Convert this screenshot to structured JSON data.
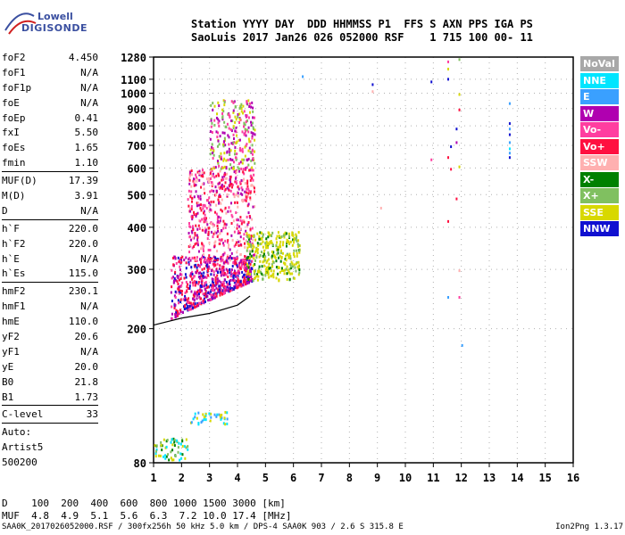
{
  "logo": {
    "line1": "Lowell",
    "line2": "DIGISONDE"
  },
  "header": {
    "line1": "Station YYYY DAY  DDD HHMMSS P1  FFS S AXN PPS IGA PS",
    "line2": "SaoLuis 2017 Jan26 026 052000 RSF    1 715 100 00- 11"
  },
  "params": [
    {
      "name": "foF2",
      "value": "4.450"
    },
    {
      "name": "foF1",
      "value": "N/A"
    },
    {
      "name": "foF1p",
      "value": "N/A"
    },
    {
      "name": "foE",
      "value": "N/A"
    },
    {
      "name": "foEp",
      "value": "0.41"
    },
    {
      "name": "fxI",
      "value": "5.50"
    },
    {
      "name": "foEs",
      "value": "1.65"
    },
    {
      "name": "fmin",
      "value": "1.10"
    },
    {
      "sep": true
    },
    {
      "name": "MUF(D)",
      "value": "17.39"
    },
    {
      "name": "M(D)",
      "value": "3.91"
    },
    {
      "name": "D",
      "value": "N/A"
    },
    {
      "sep": true
    },
    {
      "name": "h`F",
      "value": "220.0"
    },
    {
      "name": "h`F2",
      "value": "220.0"
    },
    {
      "name": "h`E",
      "value": "N/A"
    },
    {
      "name": "h`Es",
      "value": "115.0"
    },
    {
      "sep": true
    },
    {
      "name": "hmF2",
      "value": "230.1"
    },
    {
      "name": "hmF1",
      "value": "N/A"
    },
    {
      "name": "hmE",
      "value": "110.0"
    },
    {
      "name": "yF2",
      "value": "20.6"
    },
    {
      "name": "yF1",
      "value": "N/A"
    },
    {
      "name": "yE",
      "value": "20.0"
    },
    {
      "name": "B0",
      "value": "21.8"
    },
    {
      "name": "B1",
      "value": "1.73"
    },
    {
      "sep": true
    },
    {
      "name": "C-level",
      "value": "33"
    },
    {
      "sep": true
    },
    {
      "name": "Auto:",
      "value": ""
    },
    {
      "name": "Artist5",
      "value": ""
    },
    {
      "name": "500200",
      "value": ""
    }
  ],
  "legend": [
    {
      "label": "NoVal",
      "color": "#a8a8a8"
    },
    {
      "label": "NNE",
      "color": "#00e5ff"
    },
    {
      "label": "E",
      "color": "#3aa0ff"
    },
    {
      "label": "W",
      "color": "#b000b0"
    },
    {
      "label": "Vo-",
      "color": "#ff3ea0"
    },
    {
      "label": "Vo+",
      "color": "#ff1040"
    },
    {
      "label": "SSW",
      "color": "#ffb0b0"
    },
    {
      "label": "X-",
      "color": "#008000"
    },
    {
      "label": "X+",
      "color": "#80c060"
    },
    {
      "label": "SSE",
      "color": "#d8d800"
    },
    {
      "label": "NNW",
      "color": "#1010d0"
    }
  ],
  "bottom": {
    "line1": "D    100  200  400  600  800 1000 1500 3000 [km]",
    "line2": "MUF  4.8  4.9  5.1  5.6  6.3  7.2 10.0 17.4 [MHz]"
  },
  "footer": {
    "left": "SAA0K_2017026052000.RSF / 300fx256h 50 kHz 5.0 km / DPS-4 SAA0K 903 / 2.6 S 315.8 E",
    "right": "Ion2Png 1.3.17"
  },
  "chart_data": {
    "type": "scatter",
    "xlim": [
      1,
      16
    ],
    "ylim": [
      80,
      1280
    ],
    "yscale": "log",
    "xticks": [
      1,
      2,
      3,
      4,
      5,
      6,
      7,
      8,
      9,
      10,
      11,
      12,
      13,
      14,
      15,
      16
    ],
    "yticks": [
      80,
      200,
      300,
      400,
      500,
      600,
      700,
      800,
      900,
      1000,
      1100,
      1280
    ],
    "xlabel": "",
    "ylabel": "",
    "grid": true,
    "legend_position": "right",
    "clusters": [
      {
        "name": "F-trace",
        "x": [
          1.6,
          4.5
        ],
        "y": [
          215,
          330
        ],
        "colors": [
          "Vo+",
          "Vo-",
          "NNW",
          "W"
        ],
        "density": 700
      },
      {
        "name": "F-upper",
        "x": [
          2.2,
          4.6
        ],
        "y": [
          320,
          600
        ],
        "colors": [
          "Vo-",
          "Vo+",
          "W",
          "SSW"
        ],
        "density": 500
      },
      {
        "name": "spread-high",
        "x": [
          3.0,
          4.6
        ],
        "y": [
          600,
          960
        ],
        "colors": [
          "W",
          "Vo-",
          "X+",
          "SSE"
        ],
        "density": 260
      },
      {
        "name": "SSE-blob",
        "x": [
          4.3,
          6.2
        ],
        "y": [
          280,
          390
        ],
        "colors": [
          "SSE",
          "SSE",
          "SSE",
          "X-",
          "X+"
        ],
        "density": 320
      },
      {
        "name": "low-trace",
        "x": [
          1.0,
          2.2
        ],
        "y": [
          82,
          95
        ],
        "colors": [
          "X+",
          "X-",
          "NNE",
          "SSE"
        ],
        "density": 60
      },
      {
        "name": "Es-layer",
        "x": [
          2.3,
          3.8
        ],
        "y": [
          105,
          114
        ],
        "colors": [
          "NNE",
          "E",
          "SSE"
        ],
        "density": 40
      }
    ],
    "points": [
      {
        "x": 11.5,
        "y": 1250,
        "c": "Vo-"
      },
      {
        "x": 11.5,
        "y": 1190,
        "c": "SSE"
      },
      {
        "x": 11.5,
        "y": 1110,
        "c": "NNW"
      },
      {
        "x": 11.6,
        "y": 700,
        "c": "NNW"
      },
      {
        "x": 11.5,
        "y": 650,
        "c": "Vo+"
      },
      {
        "x": 11.6,
        "y": 600,
        "c": "Vo+"
      },
      {
        "x": 11.5,
        "y": 420,
        "c": "Vo+"
      },
      {
        "x": 11.5,
        "y": 250,
        "c": "E"
      },
      {
        "x": 11.9,
        "y": 1270,
        "c": "X+"
      },
      {
        "x": 11.9,
        "y": 1000,
        "c": "SSE"
      },
      {
        "x": 11.9,
        "y": 900,
        "c": "Vo+"
      },
      {
        "x": 11.8,
        "y": 790,
        "c": "NNW"
      },
      {
        "x": 11.8,
        "y": 720,
        "c": "W"
      },
      {
        "x": 11.9,
        "y": 610,
        "c": "SSE"
      },
      {
        "x": 11.8,
        "y": 490,
        "c": "Vo+"
      },
      {
        "x": 11.9,
        "y": 300,
        "c": "SSW"
      },
      {
        "x": 11.9,
        "y": 250,
        "c": "Vo-"
      },
      {
        "x": 12.0,
        "y": 180,
        "c": "E"
      },
      {
        "x": 13.7,
        "y": 940,
        "c": "E"
      },
      {
        "x": 13.7,
        "y": 820,
        "c": "NNW"
      },
      {
        "x": 13.7,
        "y": 790,
        "c": "E"
      },
      {
        "x": 13.7,
        "y": 760,
        "c": "NNW"
      },
      {
        "x": 13.7,
        "y": 720,
        "c": "E"
      },
      {
        "x": 13.7,
        "y": 690,
        "c": "NNE"
      },
      {
        "x": 13.7,
        "y": 670,
        "c": "E"
      },
      {
        "x": 13.7,
        "y": 650,
        "c": "NNW"
      },
      {
        "x": 8.8,
        "y": 1070,
        "c": "NNW"
      },
      {
        "x": 8.8,
        "y": 1020,
        "c": "SSW"
      },
      {
        "x": 10.9,
        "y": 1090,
        "c": "NNW"
      },
      {
        "x": 6.3,
        "y": 1130,
        "c": "E"
      },
      {
        "x": 10.9,
        "y": 640,
        "c": "Vo-"
      },
      {
        "x": 9.1,
        "y": 460,
        "c": "SSW"
      }
    ],
    "profile_curve": {
      "x": [
        1.0,
        2.0,
        3.0,
        4.0,
        4.45
      ],
      "y": [
        205,
        215,
        222,
        235,
        250
      ]
    }
  }
}
